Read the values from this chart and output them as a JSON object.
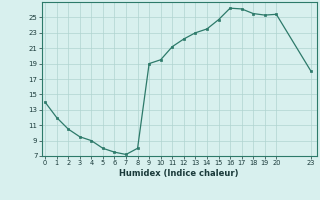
{
  "x": [
    0,
    1,
    2,
    3,
    4,
    5,
    6,
    7,
    8,
    9,
    10,
    11,
    12,
    13,
    14,
    15,
    16,
    17,
    18,
    19,
    20,
    23
  ],
  "y": [
    14.0,
    12.0,
    10.5,
    9.5,
    9.0,
    8.0,
    7.5,
    7.2,
    8.0,
    19.0,
    19.5,
    21.2,
    22.2,
    23.0,
    23.5,
    24.7,
    26.2,
    26.1,
    25.5,
    25.3,
    25.4,
    18.0
  ],
  "line_color": "#2d7a6a",
  "marker_color": "#2d7a6a",
  "bg_color": "#d8f0ee",
  "grid_color": "#b0d4d0",
  "xlabel": "Humidex (Indice chaleur)",
  "ylim": [
    7,
    27
  ],
  "yticks": [
    7,
    9,
    11,
    13,
    15,
    17,
    19,
    21,
    23,
    25
  ],
  "xticks": [
    0,
    1,
    2,
    3,
    4,
    5,
    6,
    7,
    8,
    9,
    10,
    11,
    12,
    13,
    14,
    15,
    16,
    17,
    18,
    19,
    20,
    23
  ],
  "xlim": [
    -0.3,
    23.5
  ]
}
